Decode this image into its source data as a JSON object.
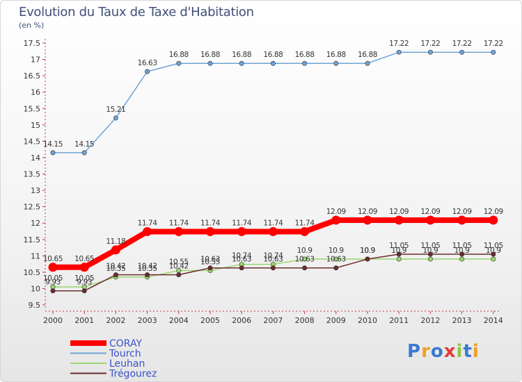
{
  "page": {
    "title": "Evolution du Taux de Taxe d'Habitation",
    "subtitle": "(en %)"
  },
  "logo": {
    "text": "Proxiti"
  },
  "chart_data": {
    "type": "line",
    "title": "Evolution du Taux de Taxe d'Habitation",
    "ylabel": "(en %)",
    "x": [
      "2000",
      "2001",
      "2002",
      "2003",
      "2004",
      "2005",
      "2006",
      "2007",
      "2008",
      "2009",
      "2010",
      "2011",
      "2012",
      "2013",
      "2014"
    ],
    "ylim": [
      9.5,
      17.5
    ],
    "yticks": [
      "9.5",
      "10",
      "10.5",
      "11",
      "11.5",
      "12",
      "12.5",
      "13",
      "13.5",
      "14",
      "14.5",
      "15",
      "15.5",
      "16",
      "16.5",
      "17",
      "17.5"
    ],
    "grid": false,
    "legend_position": "bottom-left",
    "series": [
      {
        "name": "CORAY",
        "color": "#ff0000",
        "emphasis": true,
        "values": [
          10.65,
          10.65,
          11.18,
          11.74,
          11.74,
          11.74,
          11.74,
          11.74,
          11.74,
          12.09,
          12.09,
          12.09,
          12.09,
          12.09,
          12.09
        ],
        "labels": [
          "10.65",
          "10.65",
          "11.18",
          "11.74",
          "11.74",
          "11.74",
          "11.74",
          "11.74",
          "11.74",
          "12.09",
          "12.09",
          "12.09",
          "12.09",
          "12.09",
          "12.09"
        ]
      },
      {
        "name": "Tourch",
        "color": "#6fa3d4",
        "values": [
          14.15,
          14.15,
          15.21,
          16.63,
          16.88,
          16.88,
          16.88,
          16.88,
          16.88,
          16.88,
          16.88,
          17.22,
          17.22,
          17.22,
          17.22
        ],
        "labels": [
          "14.15",
          "14.15",
          "15.21",
          "16.63",
          "16.88",
          "16.88",
          "16.88",
          "16.88",
          "16.88",
          "16.88",
          "16.88",
          "17.22",
          "17.22",
          "17.22",
          "17.22"
        ]
      },
      {
        "name": "Leuhan",
        "color": "#9bd66d",
        "values": [
          10.05,
          10.05,
          10.35,
          10.35,
          10.55,
          10.55,
          10.74,
          10.74,
          10.9,
          10.9,
          10.9,
          10.9,
          10.9,
          10.9,
          10.9
        ],
        "labels": [
          "10.05",
          "10.05",
          "10.35",
          "10.35",
          "10.55",
          "10.55",
          "10.74",
          "10.74",
          "10.9",
          "10.9",
          "10.9",
          "10.9",
          "10.9",
          "10.9",
          "10.9"
        ]
      },
      {
        "name": "Trégourez",
        "color": "#6b2c2c",
        "values": [
          9.93,
          9.93,
          10.42,
          10.42,
          10.42,
          10.63,
          10.63,
          10.63,
          10.63,
          10.63,
          10.9,
          11.05,
          11.05,
          11.05,
          11.05
        ],
        "labels": [
          "9.93",
          "9.93",
          "10.42",
          "10.42",
          "10.42",
          "10.63",
          "10.63",
          "10.63",
          "10.63",
          "10.63",
          "10.9",
          "11.05",
          "11.05",
          "11.05",
          "11.05"
        ]
      }
    ]
  }
}
